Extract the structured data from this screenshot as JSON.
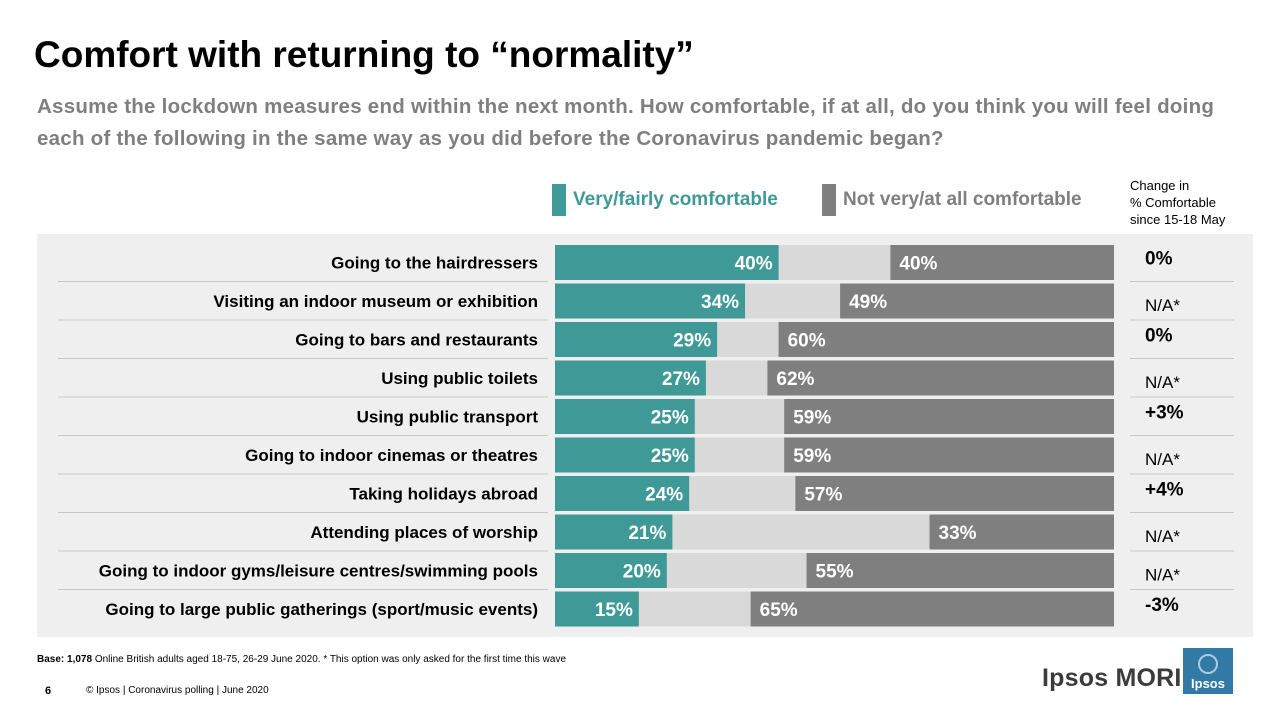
{
  "title": "Comfort with returning to “normality”",
  "subtitle": "Assume the lockdown measures end within the next month. How comfortable, if at all, do you think you will feel doing each of the following in the same way as you did before the Coronavirus pandemic began?",
  "change_header": [
    "Change in",
    "% Comfortable",
    "since 15-18 May"
  ],
  "colors": {
    "comfortable": "#3f9996",
    "not_comfortable": "#7f7f7f",
    "middle": "#d9d9d9",
    "panel": "#efefef"
  },
  "chart_data": {
    "type": "bar",
    "orientation": "horizontal",
    "stacked": true,
    "xlim": [
      0,
      100
    ],
    "legend_position": "top",
    "categories": [
      "Going to the hairdressers",
      "Visiting an indoor museum or exhibition",
      "Going to bars and restaurants",
      "Using public toilets",
      "Using public transport",
      "Going to indoor cinemas or theatres",
      "Taking holidays abroad",
      "Attending places of worship",
      "Going to indoor gyms/leisure centres/swimming pools",
      "Going to large public gatherings (sport/music events)"
    ],
    "series": [
      {
        "name": "Very/fairly  comfortable",
        "values": [
          40,
          34,
          29,
          27,
          25,
          25,
          24,
          21,
          20,
          15
        ]
      },
      {
        "name": "Not very/at all comfortable",
        "values": [
          40,
          49,
          60,
          62,
          59,
          59,
          57,
          33,
          55,
          65
        ]
      }
    ],
    "change": [
      "0%",
      "N/A*",
      "0%",
      "N/A*",
      "+3%",
      "N/A*",
      "+4%",
      "N/A*",
      "N/A*",
      "-3%"
    ],
    "change_bold": [
      true,
      false,
      true,
      false,
      true,
      false,
      true,
      false,
      false,
      true
    ]
  },
  "footer": {
    "base_label": "Base:",
    "base_n": "1,078",
    "base_text": " Online British adults aged 18-75, 26-29 June 2020. * This option was only asked for the first time this wave",
    "page_number": "6",
    "copyright": "© Ipsos | Coronavirus polling | June 2020"
  },
  "brand": {
    "name": "Ipsos MORI",
    "logo_text": "Ipsos"
  }
}
